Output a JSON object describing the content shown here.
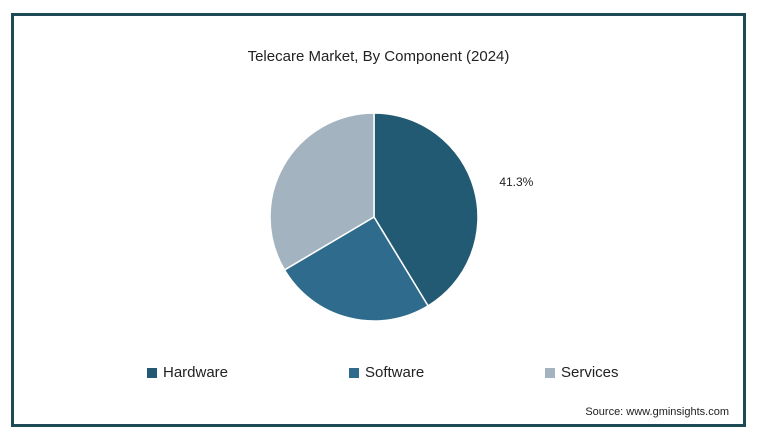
{
  "chart_data": {
    "type": "pie",
    "title": "Telecare Market, By Component (2024)",
    "slices": [
      {
        "label": "Hardware",
        "value": 41.3,
        "color": "#235a73",
        "data_label": "41.3%"
      },
      {
        "label": "Software",
        "value": 25.2,
        "color": "#2f6b8c",
        "data_label": ""
      },
      {
        "label": "Services",
        "value": 33.5,
        "color": "#a3b3c0",
        "data_label": ""
      }
    ],
    "legend_position": "bottom"
  },
  "source": "Source: www.gminsights.com"
}
